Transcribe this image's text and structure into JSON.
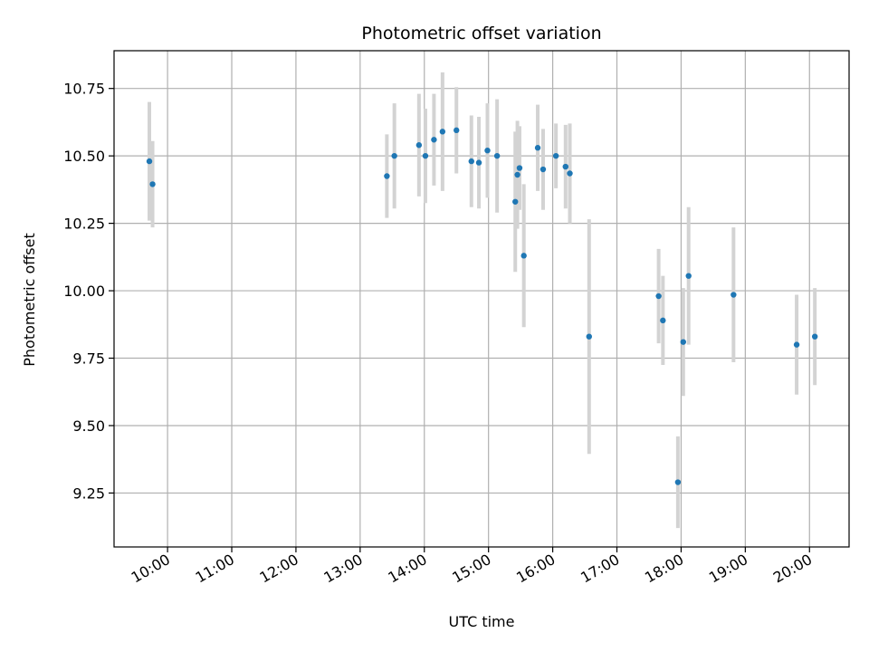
{
  "chart_data": {
    "type": "scatter",
    "title": "Photometric offset variation",
    "xlabel": "UTC time",
    "ylabel": "Photometric offset",
    "x_ticks": [
      "10:00",
      "11:00",
      "12:00",
      "13:00",
      "14:00",
      "15:00",
      "16:00",
      "17:00",
      "18:00",
      "19:00",
      "20:00"
    ],
    "y_ticks": [
      "9.25",
      "9.50",
      "9.75",
      "10.00",
      "10.25",
      "10.50",
      "10.75"
    ],
    "xlim": [
      "09:10",
      "20:37"
    ],
    "ylim": [
      9.05,
      10.89
    ],
    "grid": true,
    "marker_color": "#1f77b4",
    "errorbar_color": "#d3d3d3",
    "points": [
      {
        "x": "09:43",
        "y": 10.48,
        "err": 0.22
      },
      {
        "x": "09:46",
        "y": 10.395,
        "err": 0.16
      },
      {
        "x": "13:25",
        "y": 10.425,
        "err": 0.155
      },
      {
        "x": "13:32",
        "y": 10.5,
        "err": 0.195
      },
      {
        "x": "13:55",
        "y": 10.54,
        "err": 0.19
      },
      {
        "x": "14:01",
        "y": 10.5,
        "err": 0.175
      },
      {
        "x": "14:09",
        "y": 10.56,
        "err": 0.17
      },
      {
        "x": "14:17",
        "y": 10.59,
        "err": 0.22
      },
      {
        "x": "14:30",
        "y": 10.595,
        "err": 0.16
      },
      {
        "x": "14:44",
        "y": 10.48,
        "err": 0.17
      },
      {
        "x": "14:51",
        "y": 10.475,
        "err": 0.17
      },
      {
        "x": "14:59",
        "y": 10.52,
        "err": 0.175
      },
      {
        "x": "15:08",
        "y": 10.5,
        "err": 0.21
      },
      {
        "x": "15:25",
        "y": 10.33,
        "err": 0.26
      },
      {
        "x": "15:27",
        "y": 10.43,
        "err": 0.2
      },
      {
        "x": "15:29",
        "y": 10.455,
        "err": 0.155
      },
      {
        "x": "15:33",
        "y": 10.13,
        "err": 0.265
      },
      {
        "x": "15:46",
        "y": 10.53,
        "err": 0.16
      },
      {
        "x": "15:51",
        "y": 10.45,
        "err": 0.15
      },
      {
        "x": "16:03",
        "y": 10.5,
        "err": 0.12
      },
      {
        "x": "16:12",
        "y": 10.46,
        "err": 0.155
      },
      {
        "x": "16:16",
        "y": 10.435,
        "err": 0.185
      },
      {
        "x": "16:34",
        "y": 9.83,
        "err": 0.435
      },
      {
        "x": "17:39",
        "y": 9.98,
        "err": 0.175
      },
      {
        "x": "17:43",
        "y": 9.89,
        "err": 0.165
      },
      {
        "x": "17:57",
        "y": 9.29,
        "err": 0.17
      },
      {
        "x": "18:02",
        "y": 9.81,
        "err": 0.2
      },
      {
        "x": "18:07",
        "y": 10.055,
        "err": 0.255
      },
      {
        "x": "18:49",
        "y": 9.985,
        "err": 0.25
      },
      {
        "x": "19:48",
        "y": 9.8,
        "err": 0.185
      },
      {
        "x": "20:05",
        "y": 9.83,
        "err": 0.18
      }
    ]
  }
}
